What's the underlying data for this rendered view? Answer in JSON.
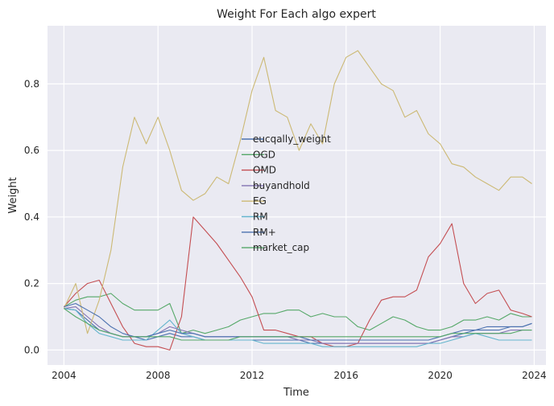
{
  "chart_data": {
    "type": "line",
    "title": "Weight For Each algo expert",
    "xlabel": "Time",
    "ylabel": "Weight",
    "xlim": [
      2003.3,
      2024.5
    ],
    "ylim": [
      -0.045,
      0.975
    ],
    "xticks": [
      2004,
      2008,
      2012,
      2016,
      2020,
      2024
    ],
    "yticks": [
      0.0,
      0.2,
      0.4,
      0.6,
      0.8
    ],
    "ytick_labels": [
      "0.0",
      "0.2",
      "0.4",
      "0.6",
      "0.8"
    ],
    "grid": true,
    "legend_placement": "center",
    "x": [
      2004.0,
      2004.5,
      2005.0,
      2005.5,
      2006.0,
      2006.5,
      2007.0,
      2007.5,
      2008.0,
      2008.5,
      2009.0,
      2009.5,
      2010.0,
      2010.5,
      2011.0,
      2011.5,
      2012.0,
      2012.5,
      2013.0,
      2013.5,
      2014.0,
      2014.5,
      2015.0,
      2015.5,
      2016.0,
      2016.5,
      2017.0,
      2017.5,
      2018.0,
      2018.5,
      2019.0,
      2019.5,
      2020.0,
      2020.5,
      2021.0,
      2021.5,
      2022.0,
      2022.5,
      2023.0,
      2023.5,
      2023.9
    ],
    "series": [
      {
        "name": "eucqally_weight",
        "color": "#4c72b0",
        "values": [
          0.125,
          0.12,
          0.09,
          0.06,
          0.05,
          0.04,
          0.04,
          0.03,
          0.04,
          0.05,
          0.04,
          0.04,
          0.03,
          0.03,
          0.03,
          0.03,
          0.03,
          0.03,
          0.03,
          0.03,
          0.03,
          0.02,
          0.02,
          0.02,
          0.02,
          0.02,
          0.02,
          0.02,
          0.02,
          0.02,
          0.02,
          0.02,
          0.03,
          0.04,
          0.05,
          0.06,
          0.06,
          0.06,
          0.07,
          0.07,
          0.08
        ]
      },
      {
        "name": "OGD",
        "color": "#55a868",
        "values": [
          0.13,
          0.15,
          0.16,
          0.16,
          0.17,
          0.14,
          0.12,
          0.12,
          0.12,
          0.14,
          0.05,
          0.06,
          0.05,
          0.06,
          0.07,
          0.09,
          0.1,
          0.11,
          0.11,
          0.12,
          0.12,
          0.1,
          0.11,
          0.1,
          0.1,
          0.07,
          0.06,
          0.08,
          0.1,
          0.09,
          0.07,
          0.06,
          0.06,
          0.07,
          0.09,
          0.09,
          0.1,
          0.09,
          0.11,
          0.1,
          0.1
        ]
      },
      {
        "name": "OMD",
        "color": "#c44e52",
        "values": [
          0.13,
          0.17,
          0.2,
          0.21,
          0.14,
          0.07,
          0.02,
          0.01,
          0.01,
          0.0,
          0.1,
          0.4,
          0.36,
          0.32,
          0.27,
          0.22,
          0.16,
          0.06,
          0.06,
          0.05,
          0.04,
          0.04,
          0.02,
          0.01,
          0.01,
          0.02,
          0.09,
          0.15,
          0.16,
          0.16,
          0.18,
          0.28,
          0.32,
          0.38,
          0.2,
          0.14,
          0.17,
          0.18,
          0.12,
          0.11,
          0.1
        ]
      },
      {
        "name": "buyandhold",
        "color": "#8172b2",
        "values": [
          0.125,
          0.13,
          0.1,
          0.07,
          0.05,
          0.04,
          0.04,
          0.04,
          0.05,
          0.07,
          0.06,
          0.05,
          0.04,
          0.04,
          0.04,
          0.04,
          0.04,
          0.04,
          0.04,
          0.04,
          0.03,
          0.03,
          0.02,
          0.02,
          0.02,
          0.02,
          0.02,
          0.02,
          0.02,
          0.02,
          0.02,
          0.02,
          0.03,
          0.04,
          0.04,
          0.05,
          0.05,
          0.05,
          0.06,
          0.06,
          0.06
        ]
      },
      {
        "name": "EG",
        "color": "#ccb974",
        "values": [
          0.125,
          0.2,
          0.05,
          0.15,
          0.3,
          0.55,
          0.7,
          0.62,
          0.7,
          0.6,
          0.48,
          0.45,
          0.47,
          0.52,
          0.5,
          0.63,
          0.78,
          0.88,
          0.72,
          0.7,
          0.6,
          0.68,
          0.62,
          0.8,
          0.88,
          0.9,
          0.85,
          0.8,
          0.78,
          0.7,
          0.72,
          0.65,
          0.62,
          0.56,
          0.55,
          0.52,
          0.5,
          0.48,
          0.52,
          0.52,
          0.5
        ]
      },
      {
        "name": "RM",
        "color": "#64b5cd",
        "values": [
          0.125,
          0.12,
          0.08,
          0.05,
          0.04,
          0.03,
          0.03,
          0.03,
          0.06,
          0.09,
          0.05,
          0.04,
          0.03,
          0.03,
          0.03,
          0.03,
          0.03,
          0.02,
          0.02,
          0.02,
          0.02,
          0.02,
          0.01,
          0.01,
          0.01,
          0.01,
          0.01,
          0.01,
          0.01,
          0.01,
          0.01,
          0.02,
          0.02,
          0.03,
          0.04,
          0.05,
          0.04,
          0.03,
          0.03,
          0.03,
          0.03
        ]
      },
      {
        "name": "RM+",
        "color": "#4c72b0",
        "values": [
          0.13,
          0.14,
          0.12,
          0.1,
          0.07,
          0.05,
          0.04,
          0.04,
          0.05,
          0.06,
          0.05,
          0.05,
          0.04,
          0.04,
          0.04,
          0.04,
          0.04,
          0.04,
          0.04,
          0.04,
          0.04,
          0.03,
          0.03,
          0.03,
          0.03,
          0.03,
          0.03,
          0.03,
          0.03,
          0.03,
          0.03,
          0.03,
          0.04,
          0.05,
          0.06,
          0.06,
          0.07,
          0.07,
          0.07,
          0.07,
          0.08
        ]
      },
      {
        "name": "market_cap",
        "color": "#55a868",
        "values": [
          0.125,
          0.1,
          0.08,
          0.06,
          0.05,
          0.04,
          0.04,
          0.04,
          0.04,
          0.04,
          0.03,
          0.03,
          0.03,
          0.03,
          0.03,
          0.04,
          0.04,
          0.04,
          0.04,
          0.04,
          0.04,
          0.04,
          0.04,
          0.04,
          0.04,
          0.04,
          0.04,
          0.04,
          0.04,
          0.04,
          0.04,
          0.04,
          0.04,
          0.05,
          0.05,
          0.05,
          0.05,
          0.05,
          0.05,
          0.06,
          0.06
        ]
      }
    ]
  }
}
